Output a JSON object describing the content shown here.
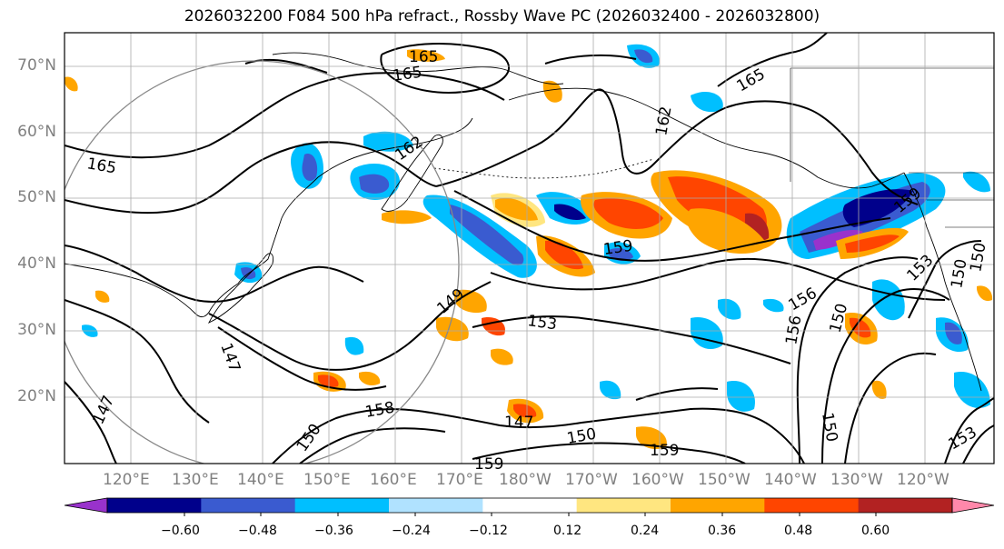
{
  "title": "2026032200 F084 500 hPa refract., Rossby Wave PC (2026032400 - 2026032800)",
  "lat_labels": [
    "70°N",
    "60°N",
    "50°N",
    "40°N",
    "30°N",
    "20°N"
  ],
  "lon_labels": [
    "120°E",
    "130°E",
    "140°E",
    "150°E",
    "160°E",
    "170°E",
    "180°W",
    "170°W",
    "160°W",
    "150°W",
    "140°W",
    "130°W",
    "120°W"
  ],
  "colorbar": {
    "ticks": [
      "−0.60",
      "−0.48",
      "−0.36",
      "−0.24",
      "−0.12",
      "0.12",
      "0.24",
      "0.36",
      "0.48",
      "0.60"
    ],
    "colors": [
      "#9932cc",
      "#00008b",
      "#3a5bd0",
      "#00bfff",
      "#b0e2ff",
      "#ffffff",
      "#ffe680",
      "#ffa500",
      "#ff4500",
      "#b22222",
      "#ff88aa"
    ]
  },
  "contour_labels": [
    "165",
    "165",
    "162",
    "162",
    "165",
    "165",
    "159",
    "159",
    "153",
    "156",
    "156",
    "150",
    "150",
    "147",
    "147",
    "147",
    "150",
    "158",
    "150",
    "159",
    "159",
    "153",
    "153",
    "150",
    "149",
    "150"
  ],
  "colors": {
    "gridline": "#aaaaaa",
    "contour": "#000000",
    "frame": "#000000",
    "circle": "#888888",
    "label_gray": "#808080"
  }
}
